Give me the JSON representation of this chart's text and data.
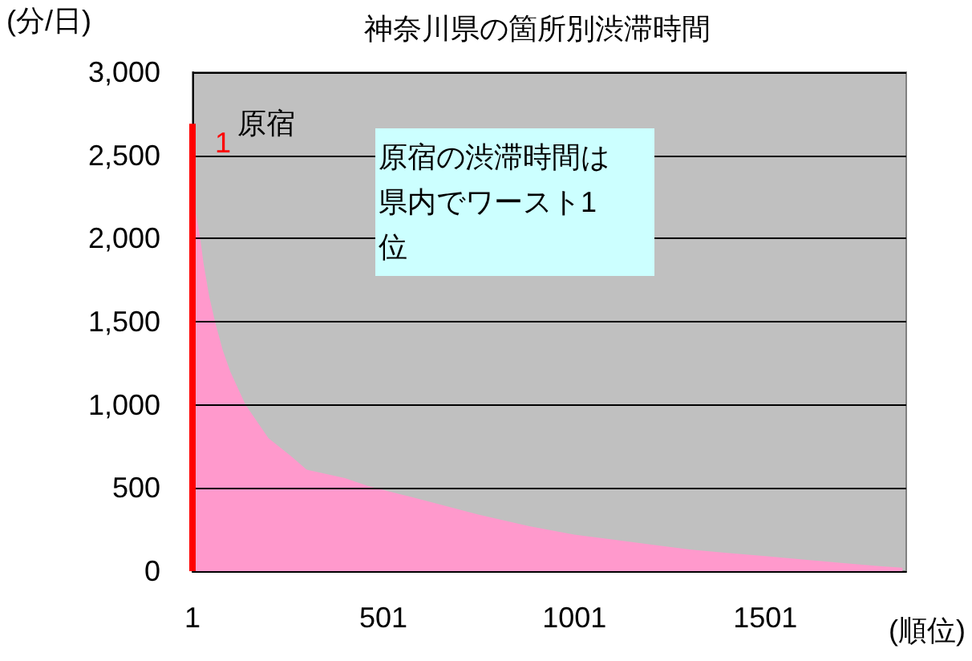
{
  "chart_data": {
    "type": "area",
    "title": "神奈川県の箇所別渋滞時間",
    "xlabel": "(順位)",
    "ylabel": "(分/日)",
    "xlim": [
      1,
      1870
    ],
    "xticks": [
      1,
      501,
      1001,
      1501
    ],
    "ylim": [
      0,
      3000
    ],
    "yticks": [
      0,
      500,
      {
        "value": 1000,
        "label": "1,000"
      },
      {
        "value": 1500,
        "label": "1,500"
      },
      {
        "value": 2000,
        "label": "2,000"
      },
      {
        "value": 2500,
        "label": "2,500"
      },
      {
        "value": 3000,
        "label": "3,000"
      }
    ],
    "grid": "y",
    "series": [
      {
        "type": "bar",
        "color": "#ff0000",
        "x": [
          1
        ],
        "values": [
          2690
        ]
      },
      {
        "color": "#ff99cc",
        "x": [
          10,
          20,
          30,
          45,
          60,
          80,
          100,
          140,
          200,
          260,
          300,
          400,
          463,
          550,
          650,
          750,
          883,
          1001,
          1100,
          1200,
          1303,
          1400,
          1501,
          1600,
          1700,
          1800,
          1860
        ],
        "values": [
          2150,
          2020,
          1850,
          1650,
          1500,
          1330,
          1200,
          1000,
          800,
          690,
          610,
          560,
          510,
          460,
          400,
          340,
          270,
          220,
          190,
          160,
          130,
          110,
          90,
          70,
          50,
          30,
          20
        ]
      }
    ],
    "annotations": [
      {
        "text": "1",
        "x": 1,
        "y": 2690
      },
      "原宿",
      "原宿の渋滞時間は県内でワースト1位"
    ]
  }
}
